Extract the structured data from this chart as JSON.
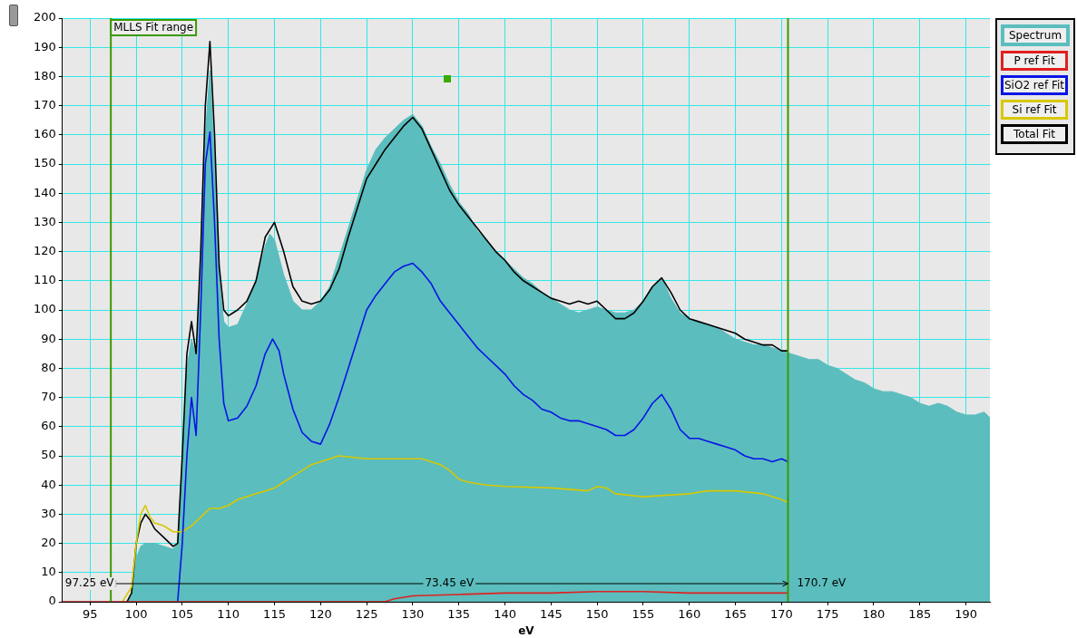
{
  "chart_data": {
    "type": "line",
    "xlabel": "eV",
    "xlim": [
      92,
      192.6
    ],
    "ylim": [
      0,
      200
    ],
    "xticks": [
      95,
      100,
      105,
      110,
      115,
      120,
      125,
      130,
      135,
      140,
      145,
      150,
      155,
      160,
      165,
      170,
      175,
      180,
      185,
      190
    ],
    "yticks": [
      0,
      10,
      20,
      30,
      40,
      50,
      60,
      70,
      80,
      90,
      100,
      110,
      120,
      130,
      140,
      150,
      160,
      170,
      180,
      190,
      200
    ],
    "grid": true,
    "legend": "top right",
    "marker": "none",
    "line_style": "solid",
    "series": [
      {
        "name": "Spectrum",
        "type": "area",
        "color": "#5bbdbd",
        "x": [
          92,
          99,
          99.5,
          100,
          100.5,
          101,
          102,
          103,
          104,
          104.5,
          105,
          105.5,
          106,
          106.5,
          107,
          107.5,
          108,
          108.5,
          109,
          109.5,
          110,
          111,
          112,
          113,
          114,
          114.5,
          115,
          116,
          117,
          118,
          119,
          120,
          121,
          122,
          123,
          124,
          125,
          126,
          127,
          128,
          129,
          130,
          131,
          132,
          133,
          134,
          135,
          136,
          137,
          138,
          139,
          140,
          141,
          142,
          143,
          144,
          145,
          146,
          147,
          148,
          149,
          150,
          151,
          152,
          153,
          154,
          155,
          156,
          157,
          158,
          159,
          160,
          161,
          162,
          163,
          164,
          165,
          166,
          167,
          168,
          169,
          170,
          171,
          172,
          173,
          174,
          175,
          176,
          177,
          178,
          179,
          180,
          181,
          182,
          183,
          184,
          185,
          186,
          187,
          188,
          189,
          190,
          191,
          192,
          192.6
        ],
        "values": [
          0,
          0,
          2,
          15,
          19,
          20,
          20,
          19,
          18,
          20,
          45,
          80,
          90,
          84,
          110,
          160,
          182,
          150,
          110,
          96,
          94,
          95,
          102,
          110,
          122,
          126,
          124,
          112,
          103,
          100,
          100,
          103,
          108,
          118,
          128,
          138,
          148,
          155,
          159,
          162,
          165,
          167,
          163,
          156,
          150,
          143,
          137,
          133,
          127,
          124,
          120,
          117,
          114,
          111,
          109,
          106,
          104,
          102,
          100,
          99,
          100,
          101,
          100,
          99,
          99,
          100,
          103,
          108,
          111,
          104,
          99,
          97,
          96,
          95,
          94,
          92,
          90,
          89,
          88,
          88,
          87,
          86,
          85,
          84,
          83,
          83,
          81,
          80,
          78,
          76,
          75,
          73,
          72,
          72,
          71,
          70,
          68,
          67,
          68,
          67,
          65,
          64,
          64,
          65,
          63
        ]
      },
      {
        "name": "P ref Fit",
        "color": "#e02020",
        "x": [
          92,
          127,
          128,
          130,
          135,
          140,
          145,
          150,
          155,
          160,
          165,
          170.7
        ],
        "values": [
          0,
          0,
          1,
          2,
          2.5,
          3,
          3,
          3.5,
          3.5,
          3,
          3,
          3
        ]
      },
      {
        "name": "SiO2 ref Fit",
        "color": "#0a14e6",
        "x": [
          104.5,
          105,
          105.5,
          106,
          106.5,
          107,
          107.5,
          108,
          108.5,
          109,
          109.5,
          110,
          111,
          112,
          113,
          114,
          114.8,
          115.5,
          116,
          117,
          118,
          119,
          120,
          121,
          122,
          123,
          124,
          125,
          126,
          127,
          128,
          129,
          130,
          131,
          132,
          133,
          134,
          135,
          136,
          137,
          138,
          139,
          140,
          141,
          142,
          143,
          144,
          145,
          146,
          147,
          148,
          149,
          150,
          151,
          152,
          153,
          154,
          155,
          156,
          157,
          158,
          159,
          160,
          161,
          162,
          163,
          164,
          165,
          166,
          167,
          168,
          169,
          170,
          170.7
        ],
        "values": [
          0,
          20,
          50,
          70,
          57,
          100,
          150,
          161,
          130,
          90,
          68,
          62,
          63,
          67,
          74,
          85,
          90,
          86,
          78,
          66,
          58,
          55,
          54,
          61,
          70,
          80,
          90,
          100,
          105,
          109,
          113,
          115,
          116,
          113,
          109,
          103,
          99,
          95,
          91,
          87,
          84,
          81,
          78,
          74,
          71,
          69,
          66,
          65,
          63,
          62,
          62,
          61,
          60,
          59,
          57,
          57,
          59,
          63,
          68,
          71,
          66,
          59,
          56,
          56,
          55,
          54,
          53,
          52,
          50,
          49,
          49,
          48,
          49,
          48
        ]
      },
      {
        "name": "Si ref Fit",
        "color": "#d8c800",
        "x": [
          98.5,
          99.5,
          100,
          100.5,
          101,
          101.5,
          102,
          103,
          104,
          105,
          106,
          107,
          108,
          109,
          110,
          111,
          112,
          113,
          114,
          115,
          116,
          117,
          118,
          119,
          120,
          121,
          122,
          125,
          130,
          131,
          132,
          133,
          134,
          135,
          136,
          138,
          140,
          145,
          149,
          150,
          151,
          152,
          155,
          160,
          162,
          165,
          168,
          170,
          170.7
        ],
        "values": [
          0,
          5,
          20,
          30,
          33,
          29,
          27,
          26,
          24,
          24,
          26,
          29,
          32,
          32,
          33,
          35,
          36,
          37,
          38,
          39,
          41,
          43,
          45,
          47,
          48,
          49,
          50,
          49,
          49,
          49,
          48,
          47,
          45,
          42,
          41,
          40,
          39.5,
          39,
          38,
          39.5,
          39,
          37,
          36,
          37,
          38,
          38,
          37,
          35,
          34
        ]
      },
      {
        "name": "Total Fit",
        "color": "#000000",
        "x": [
          99,
          99.5,
          100,
          100.5,
          101,
          101.5,
          102,
          103,
          104,
          104.5,
          105,
          105.5,
          106,
          106.5,
          107,
          107.5,
          108,
          108.5,
          109,
          109.5,
          110,
          111,
          112,
          113,
          114,
          115,
          116,
          117,
          118,
          119,
          120,
          121,
          122,
          123,
          124,
          125,
          126,
          127,
          128,
          129,
          130,
          131,
          132,
          133,
          134,
          135,
          136,
          137,
          138,
          139,
          140,
          141,
          142,
          143,
          144,
          145,
          146,
          147,
          148,
          149,
          150,
          151,
          152,
          153,
          154,
          155,
          156,
          157,
          158,
          159,
          160,
          161,
          162,
          163,
          164,
          165,
          166,
          167,
          168,
          169,
          170,
          170.7
        ],
        "values": [
          0,
          3,
          20,
          27,
          30,
          28,
          25,
          22,
          19,
          20,
          50,
          85,
          96,
          85,
          120,
          170,
          192,
          160,
          115,
          100,
          98,
          100,
          103,
          110,
          125,
          130,
          120,
          108,
          103,
          102,
          103,
          107,
          114,
          125,
          135,
          145,
          150,
          155,
          159,
          163,
          166,
          162,
          155,
          148,
          141,
          136,
          132,
          128,
          124,
          120,
          117,
          113,
          110,
          108,
          106,
          104,
          103,
          102,
          103,
          102,
          103,
          100,
          97,
          97,
          99,
          103,
          108,
          111,
          106,
          100,
          97,
          96,
          95,
          94,
          93,
          92,
          90,
          89,
          88,
          88,
          86,
          86
        ]
      }
    ],
    "ref_lines": [
      {
        "axis": "x",
        "value": 97.25,
        "label": "MLLS Fit range",
        "color": "#3a9a00"
      },
      {
        "axis": "x",
        "value": 170.7,
        "color": "#3a9a00"
      }
    ],
    "annotations": [
      "97.25 eV",
      "73.45 eV",
      "170.7 eV"
    ]
  }
}
